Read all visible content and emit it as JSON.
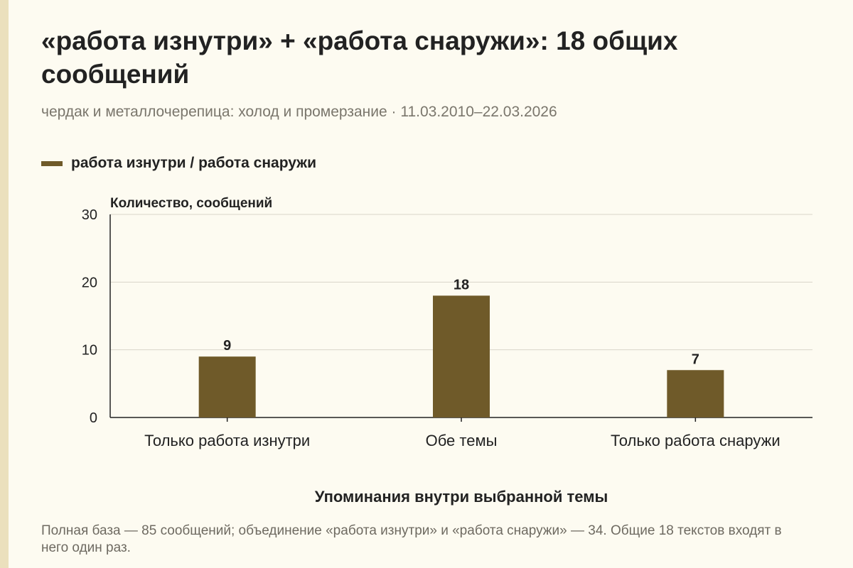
{
  "title": "«работа изнутри» + «работа снаружи»: 18 общих сообщений",
  "subtitle": "чердак и металлочерепица: холод и промерзание · 11.03.2010–22.03.2026",
  "legend": {
    "label": "работа изнутри / работа снаружи"
  },
  "note": "Полная база — 85 сообщений; объединение «работа изнутри» и «работа снаружи» — 34. Общие 18 текстов входят в него один раз.",
  "colors": {
    "bar": "#6f5a29",
    "grid": "#d9d5c9",
    "axis": "#222222",
    "background": "#fdfbf1"
  },
  "chart_data": {
    "type": "bar",
    "categories": [
      "Только работа изнутри",
      "Обе темы",
      "Только работа снаружи"
    ],
    "series": [
      {
        "name": "работа изнутри / работа снаружи",
        "values": [
          9,
          18,
          7
        ]
      }
    ],
    "data_labels": [
      "9",
      "18",
      "7"
    ],
    "ylabel": "Количество, сообщений",
    "xlabel": "Упоминания внутри выбранной темы",
    "ylim": [
      0,
      30
    ],
    "yticks": [
      0,
      10,
      20,
      30
    ],
    "grid": true,
    "legend_position": "top-left"
  }
}
